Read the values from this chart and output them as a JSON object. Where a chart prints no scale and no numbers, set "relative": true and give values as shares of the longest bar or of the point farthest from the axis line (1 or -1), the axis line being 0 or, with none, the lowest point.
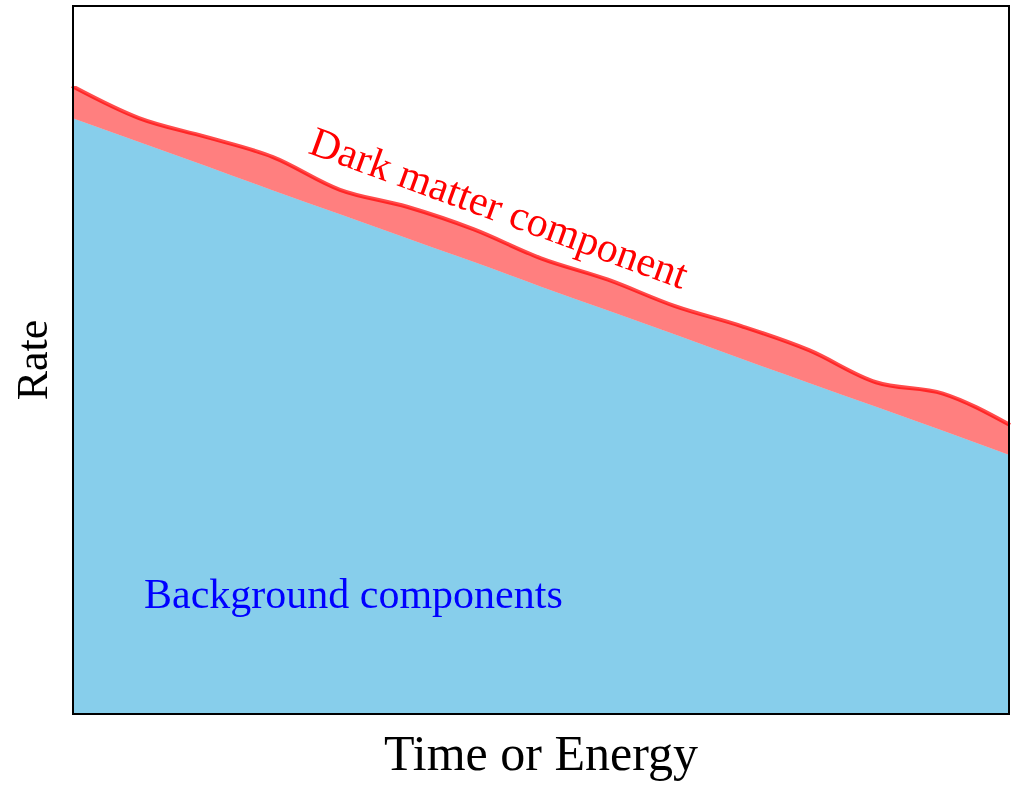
{
  "chart_data": {
    "type": "area",
    "stacked": true,
    "relative": true,
    "xlabel": "Time or Energy",
    "ylabel": "Rate",
    "categories": [
      null,
      null,
      null,
      null,
      null,
      null,
      null,
      null,
      null,
      null,
      null,
      null,
      null,
      null,
      null
    ],
    "series": [
      {
        "name": "Background components",
        "color": "#87ceeb",
        "values": [
          0.949,
          0.911,
          0.873,
          0.834,
          0.796,
          0.758,
          0.72,
          0.681,
          0.643,
          0.605,
          0.566,
          0.528,
          0.49,
          0.452,
          0.413
        ]
      },
      {
        "name": "Dark matter component",
        "color": "#ff0000",
        "values": [
          0.051,
          0.038,
          0.046,
          0.053,
          0.039,
          0.05,
          0.052,
          0.045,
          0.049,
          0.045,
          0.052,
          0.052,
          0.039,
          0.059,
          0.048
        ]
      }
    ],
    "legend": false,
    "grid": false
  }
}
